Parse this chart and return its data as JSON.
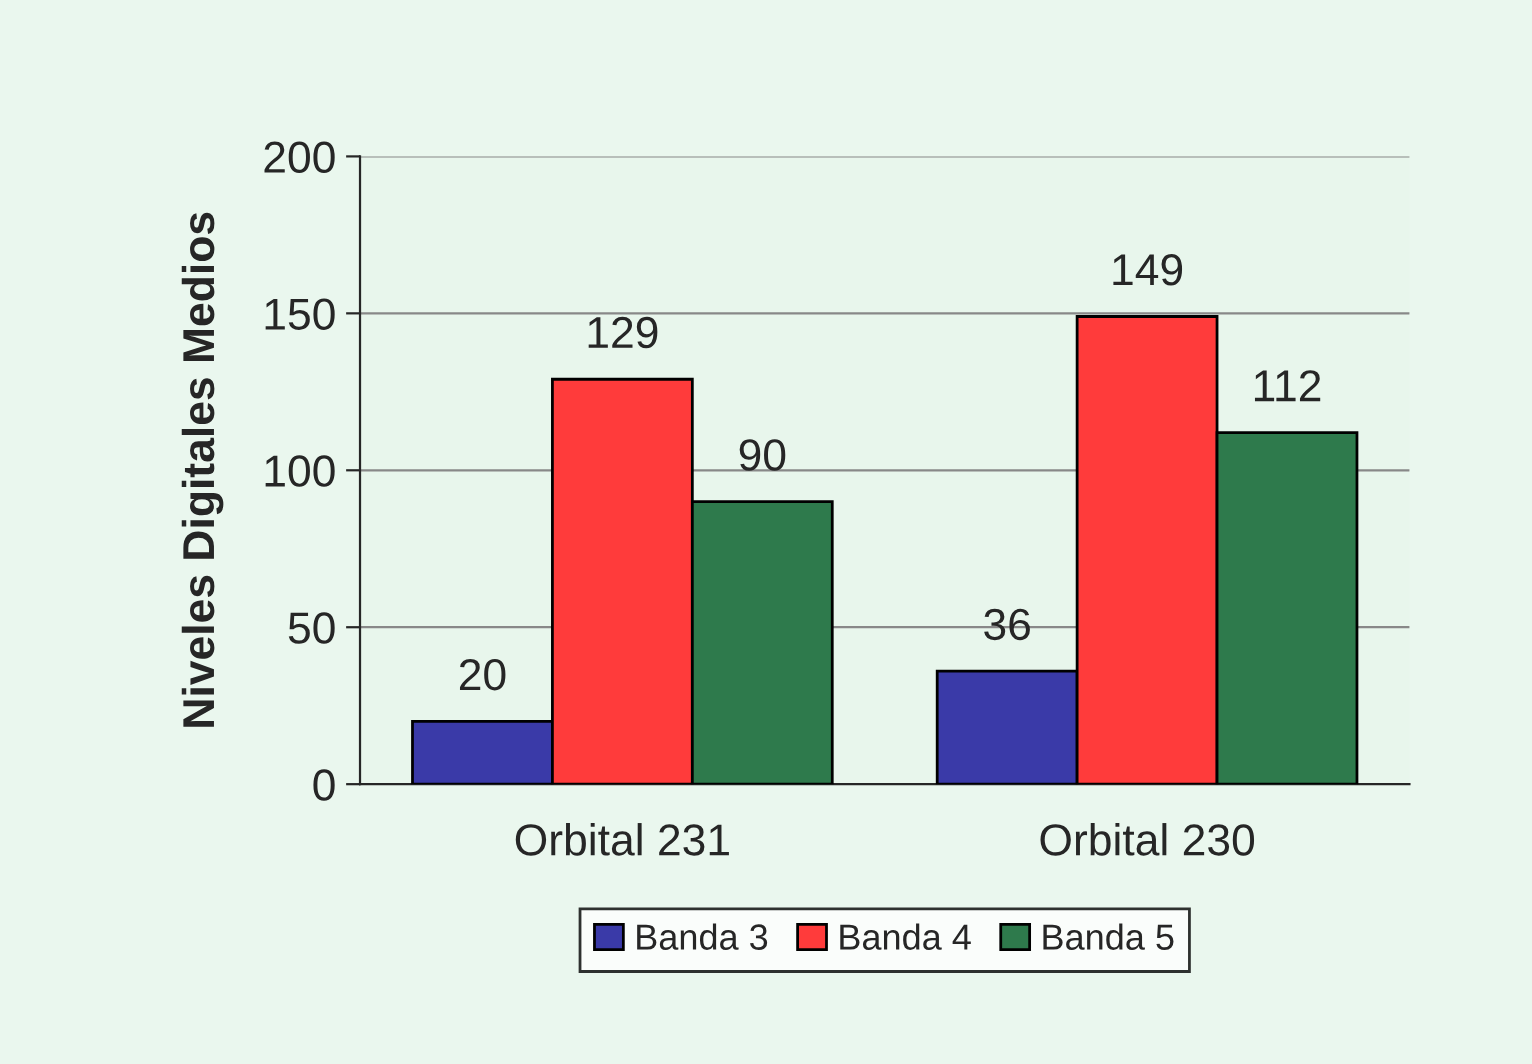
{
  "chart_data": {
    "type": "bar",
    "ylabel": "Niveles Digitales Medios",
    "categories": [
      "Orbital 231",
      "Orbital 230"
    ],
    "series": [
      {
        "name": "Banda 3",
        "color": "#3a3aa8",
        "values": [
          20,
          36
        ]
      },
      {
        "name": "Banda 4",
        "color": "#ff3b3b",
        "values": [
          129,
          149
        ]
      },
      {
        "name": "Banda 5",
        "color": "#2e7a4c",
        "values": [
          90,
          112
        ]
      }
    ],
    "ylim": [
      0,
      200
    ],
    "yticks": [
      0,
      50,
      100,
      150,
      200
    ],
    "grid": "y",
    "legend": "bottom",
    "data_labels": true
  }
}
